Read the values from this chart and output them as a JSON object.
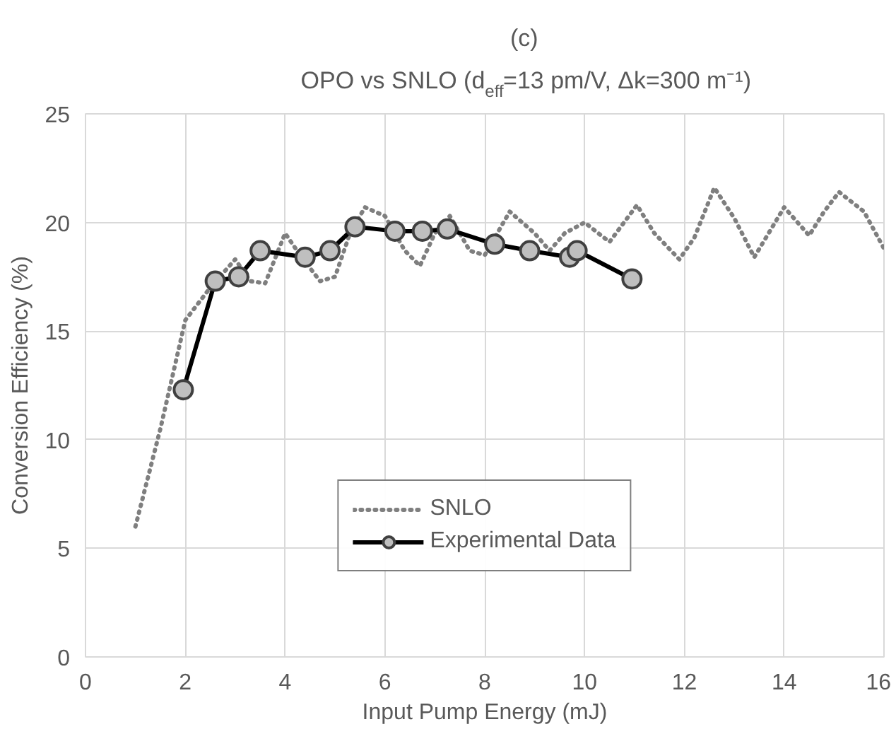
{
  "chart_data": {
    "type": "line",
    "title": "(c)",
    "subtitle": "OPO vs SNLO (d$_{eff}$=13 pm/V, Δk=300 m⁻¹)",
    "xlabel": "Input Pump Energy (mJ)",
    "ylabel": "Conversion Efficiency (%)",
    "xlim": [
      0,
      16
    ],
    "xticks": [
      0,
      2,
      4,
      6,
      8,
      10,
      12,
      14,
      16
    ],
    "ylim": [
      0,
      25
    ],
    "yticks": [
      0,
      5,
      10,
      15,
      20,
      25
    ],
    "grid": true,
    "legend": "bottom",
    "series": [
      {
        "name": "SNLO",
        "color": "#7f7f7f",
        "line_style": "dotted",
        "marker": "none",
        "x": [
          1.0,
          1.5,
          2.0,
          2.5,
          3.0,
          3.3,
          3.6,
          4.0,
          4.3,
          4.7,
          5.0,
          5.3,
          5.6,
          6.0,
          6.4,
          6.7,
          7.0,
          7.3,
          7.7,
          8.0,
          8.5,
          9.0,
          9.3,
          9.6,
          10.0,
          10.5,
          11.05,
          11.4,
          11.9,
          12.2,
          12.6,
          13.0,
          13.4,
          14.0,
          14.5,
          14.8,
          15.1,
          15.6,
          16.0
        ],
        "values": [
          6.0,
          10.5,
          15.5,
          17.0,
          18.3,
          17.3,
          17.2,
          19.5,
          18.5,
          17.3,
          17.5,
          19.5,
          20.7,
          20.3,
          18.7,
          18.0,
          19.5,
          20.3,
          18.7,
          18.5,
          20.5,
          19.5,
          18.7,
          19.5,
          20.0,
          19.1,
          20.8,
          19.5,
          18.3,
          19.3,
          21.6,
          20.2,
          18.4,
          20.7,
          19.4,
          20.5,
          21.4,
          20.5,
          18.8
        ]
      },
      {
        "name": "Experimental Data",
        "color": "#000000",
        "line_style": "solid",
        "marker": "circle",
        "x": [
          1.96,
          2.6,
          3.07,
          3.5,
          4.4,
          4.9,
          5.4,
          6.2,
          6.75,
          7.25,
          8.2,
          8.9,
          9.7,
          9.85,
          10.95
        ],
        "values": [
          12.3,
          17.3,
          17.5,
          18.7,
          18.4,
          18.7,
          19.8,
          19.6,
          19.6,
          19.7,
          19.0,
          18.7,
          18.4,
          18.7,
          17.4
        ]
      }
    ]
  }
}
